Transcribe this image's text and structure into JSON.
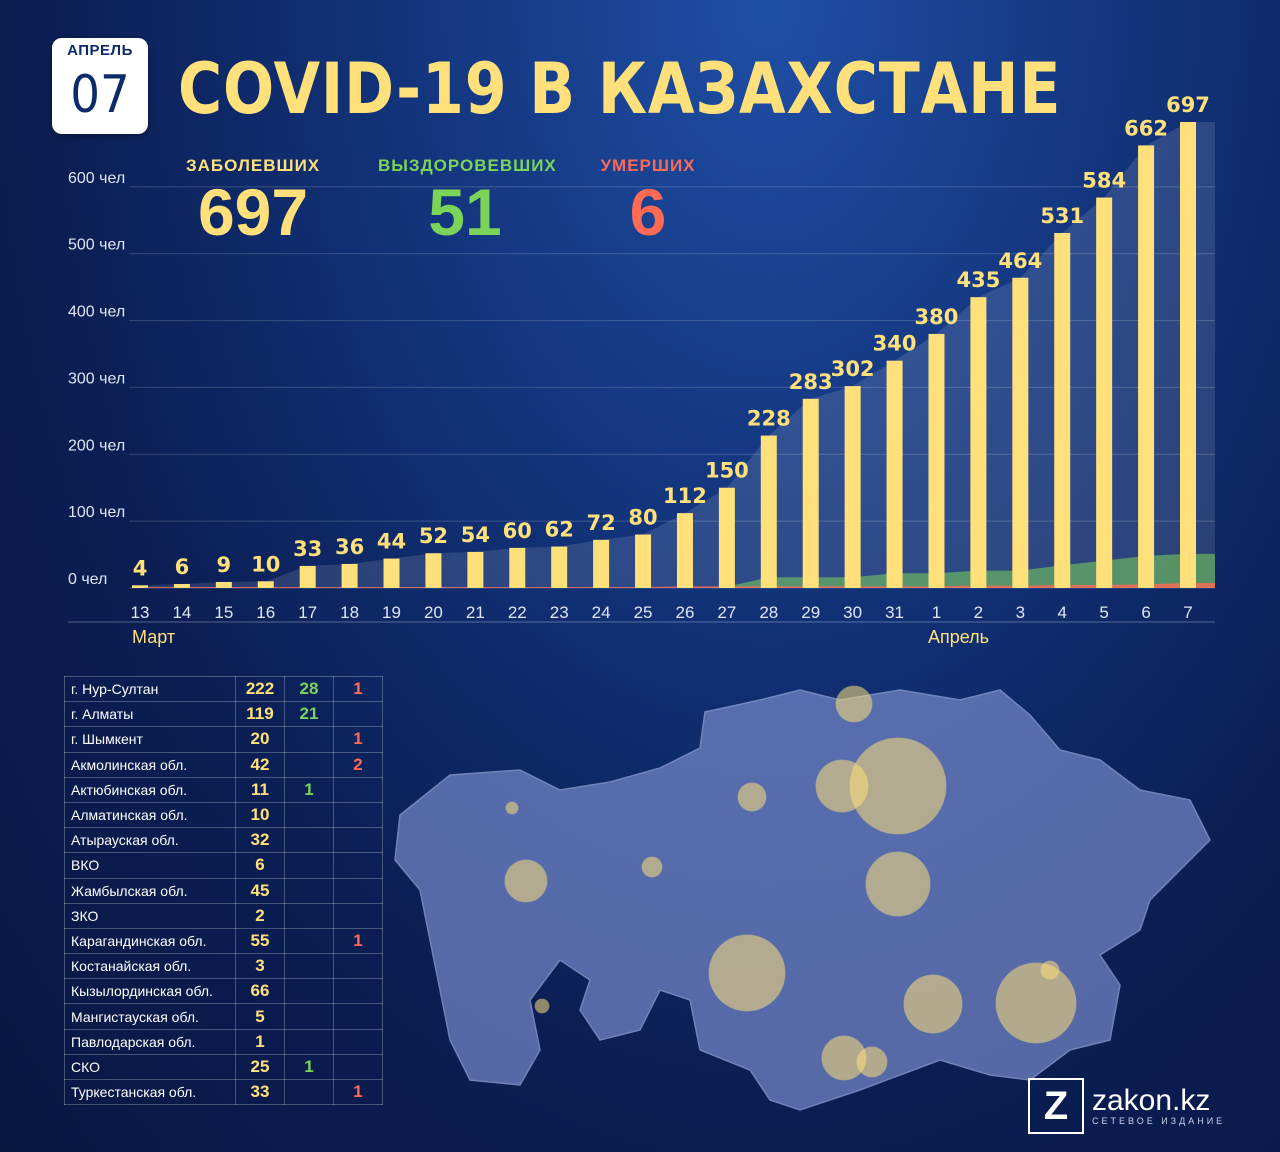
{
  "date": {
    "month": "АПРЕЛЬ",
    "day": "07"
  },
  "title": "COVID-19 В КАЗАХСТАНЕ",
  "stats": [
    {
      "label": "ЗАБОЛЕВШИХ",
      "value": "697",
      "color": "#ffe07a"
    },
    {
      "label": "ВЫЗДОРОВЕВШИХ",
      "value": "51",
      "color": "#7cd35a"
    },
    {
      "label": "УМЕРШИХ",
      "value": "6",
      "color": "#ff6a55"
    }
  ],
  "chart_data": {
    "type": "bar",
    "categories": [
      "13",
      "14",
      "15",
      "16",
      "17",
      "18",
      "19",
      "20",
      "21",
      "22",
      "23",
      "24",
      "25",
      "26",
      "27",
      "28",
      "29",
      "30",
      "31",
      "1",
      "2",
      "3",
      "4",
      "5",
      "6",
      "7"
    ],
    "month_labels": {
      "march": "Март",
      "april": "Апрель"
    },
    "y_ticks": [
      "0 чел",
      "100 чел",
      "200 чел",
      "300 чел",
      "400 чел",
      "500 чел",
      "600 чел"
    ],
    "ylim": [
      0,
      700
    ],
    "series": [
      {
        "name": "ЗАБОЛЕВШИХ",
        "color": "#ffe07a",
        "values": [
          4,
          6,
          9,
          10,
          33,
          36,
          44,
          52,
          54,
          60,
          62,
          72,
          80,
          112,
          150,
          228,
          283,
          302,
          340,
          380,
          435,
          464,
          531,
          584,
          662,
          697
        ]
      },
      {
        "name": "ВЫЗДОРОВЕВШИХ",
        "color": "#7cd35a",
        "values": [
          0,
          0,
          0,
          0,
          0,
          0,
          0,
          0,
          0,
          0,
          0,
          0,
          0,
          0,
          2,
          16,
          16,
          16,
          22,
          22,
          26,
          26,
          34,
          41,
          48,
          51
        ]
      },
      {
        "name": "УМЕРШИХ",
        "color": "#ff6a55",
        "values": [
          0,
          0,
          0,
          0,
          0,
          0,
          0,
          0,
          0,
          0,
          0,
          0,
          0,
          1,
          1,
          1,
          1,
          1,
          1,
          1,
          2,
          2,
          3,
          3,
          4,
          6
        ]
      }
    ],
    "grid": true
  },
  "regions": [
    {
      "name": "г. Нур-Султан",
      "cases": "222",
      "recovered": "28",
      "deaths": "1"
    },
    {
      "name": "г. Алматы",
      "cases": "119",
      "recovered": "21",
      "deaths": ""
    },
    {
      "name": "г. Шымкент",
      "cases": "20",
      "recovered": "",
      "deaths": "1"
    },
    {
      "name": "Акмолинская обл.",
      "cases": "42",
      "recovered": "",
      "deaths": "2"
    },
    {
      "name": "Актюбинская обл.",
      "cases": "11",
      "recovered": "1",
      "deaths": ""
    },
    {
      "name": "Алматинская обл.",
      "cases": "10",
      "recovered": "",
      "deaths": ""
    },
    {
      "name": "Атырауская обл.",
      "cases": "32",
      "recovered": "",
      "deaths": ""
    },
    {
      "name": "ВКО",
      "cases": "6",
      "recovered": "",
      "deaths": ""
    },
    {
      "name": "Жамбылская обл.",
      "cases": "45",
      "recovered": "",
      "deaths": ""
    },
    {
      "name": "ЗКО",
      "cases": "2",
      "recovered": "",
      "deaths": ""
    },
    {
      "name": "Карагандинская обл.",
      "cases": "55",
      "recovered": "",
      "deaths": "1"
    },
    {
      "name": "Костанайская обл.",
      "cases": "3",
      "recovered": "",
      "deaths": ""
    },
    {
      "name": "Кызылординская обл.",
      "cases": "66",
      "recovered": "",
      "deaths": ""
    },
    {
      "name": "Мангистауская обл.",
      "cases": "5",
      "recovered": "",
      "deaths": ""
    },
    {
      "name": "Павлодарская обл.",
      "cases": "1",
      "recovered": "",
      "deaths": ""
    },
    {
      "name": "СКО",
      "cases": "25",
      "recovered": "1",
      "deaths": ""
    },
    {
      "name": "Туркестанская обл.",
      "cases": "33",
      "recovered": "",
      "deaths": "1"
    }
  ],
  "logo": {
    "brand": "zakon.kz",
    "subtitle": "СЕТЕВОЕ ИЗДАНИЕ",
    "letter": "Z"
  }
}
